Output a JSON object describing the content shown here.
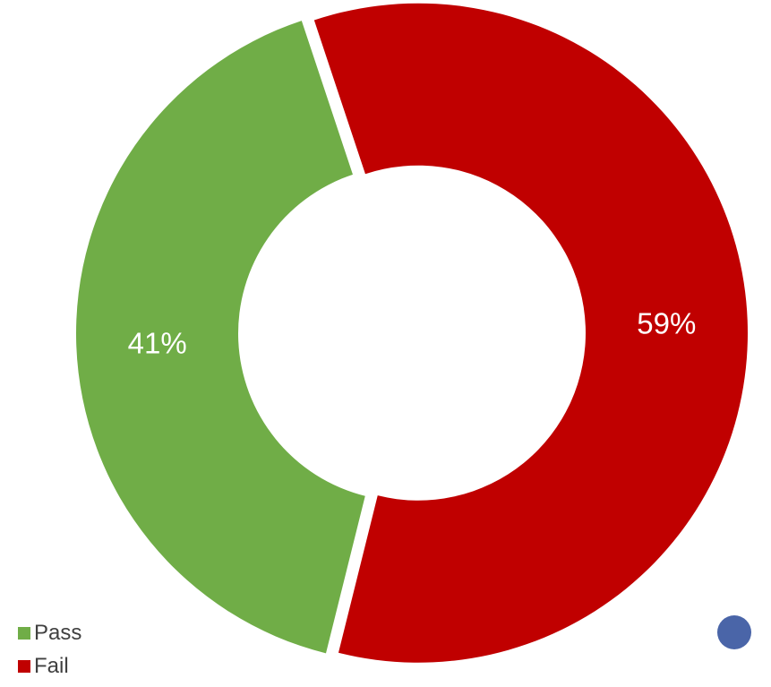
{
  "chart_data": {
    "type": "pie",
    "donut": true,
    "title": "",
    "categories": [
      "Pass",
      "Fail"
    ],
    "values": [
      41,
      59
    ],
    "labels": [
      "41%",
      "59%"
    ],
    "colors": [
      "#70ad47",
      "#c00000"
    ],
    "legend_position": "bottom-left",
    "start_angle_deg": 104,
    "direction": "clockwise"
  },
  "legend": {
    "items": [
      {
        "label": "Pass",
        "color": "#70ad47"
      },
      {
        "label": "Fail",
        "color": "#c00000"
      }
    ]
  },
  "accent_dot": {
    "color": "#4a65a8"
  }
}
